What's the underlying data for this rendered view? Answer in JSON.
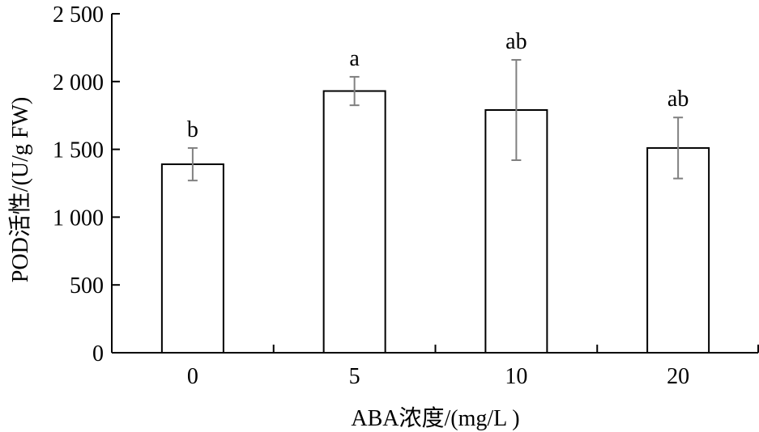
{
  "chart_data": {
    "type": "bar",
    "xlabel": "ABA浓度/(mg/L )",
    "ylabel": "POD活性/(U/g  FW)",
    "categories": [
      "0",
      "5",
      "10",
      "20"
    ],
    "values": [
      1390,
      1930,
      1790,
      1510
    ],
    "errors": [
      120,
      105,
      370,
      225
    ],
    "significance": [
      "b",
      "a",
      "ab",
      "ab"
    ],
    "ylim": [
      0,
      2500
    ],
    "yticks": [
      0,
      500,
      1000,
      1500,
      2000,
      2500
    ],
    "ytick_labels": [
      "0",
      "500",
      "1 000",
      "1 500",
      "2 000",
      "2 500"
    ],
    "grid": false,
    "colors": {
      "bar_fill": "#ffffff",
      "bar_stroke": "#000000",
      "error_bar": "#808080",
      "axis": "#000000"
    }
  }
}
